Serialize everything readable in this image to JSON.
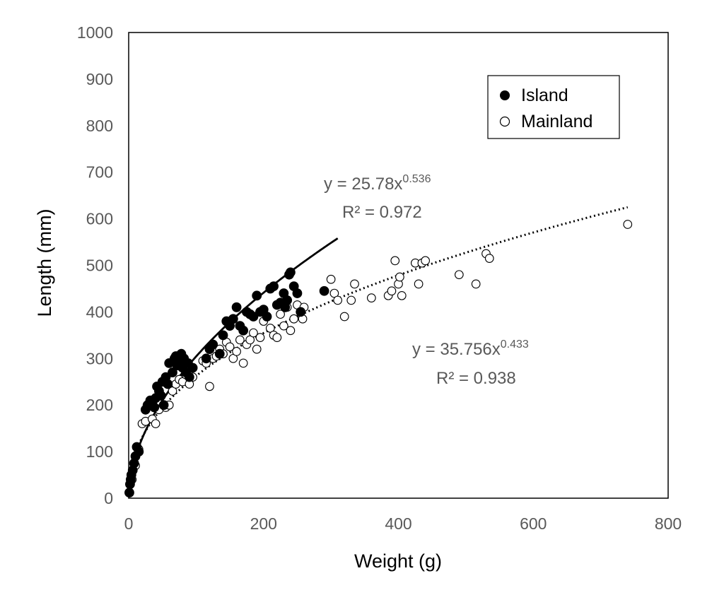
{
  "chart_data": {
    "type": "scatter",
    "title": "",
    "xlabel": "Weight (g)",
    "ylabel": "Length (mm)",
    "xlim": [
      0,
      800
    ],
    "ylim": [
      0,
      1000
    ],
    "xticks": [
      "0",
      "200",
      "400",
      "600",
      "800"
    ],
    "yticks": [
      "0",
      "100",
      "200",
      "300",
      "400",
      "500",
      "600",
      "700",
      "800",
      "900",
      "1000"
    ],
    "grid": false,
    "legend_position": "top-right",
    "series": [
      {
        "name": "Island",
        "marker": "filled-circle",
        "color": "#000000",
        "points": [
          [
            1,
            12
          ],
          [
            2,
            30
          ],
          [
            3,
            40
          ],
          [
            4,
            50
          ],
          [
            6,
            60
          ],
          [
            8,
            75
          ],
          [
            10,
            90
          ],
          [
            12,
            110
          ],
          [
            15,
            100
          ],
          [
            25,
            190
          ],
          [
            28,
            200
          ],
          [
            32,
            210
          ],
          [
            35,
            205
          ],
          [
            38,
            195
          ],
          [
            40,
            215
          ],
          [
            42,
            240
          ],
          [
            45,
            230
          ],
          [
            48,
            220
          ],
          [
            50,
            250
          ],
          [
            52,
            200
          ],
          [
            55,
            260
          ],
          [
            58,
            245
          ],
          [
            60,
            290
          ],
          [
            65,
            270
          ],
          [
            68,
            300
          ],
          [
            70,
            305
          ],
          [
            72,
            285
          ],
          [
            75,
            295
          ],
          [
            78,
            310
          ],
          [
            80,
            280
          ],
          [
            82,
            300
          ],
          [
            85,
            270
          ],
          [
            88,
            290
          ],
          [
            90,
            260
          ],
          [
            95,
            280
          ],
          [
            115,
            300
          ],
          [
            120,
            320
          ],
          [
            125,
            330
          ],
          [
            135,
            310
          ],
          [
            140,
            350
          ],
          [
            145,
            380
          ],
          [
            150,
            370
          ],
          [
            155,
            385
          ],
          [
            160,
            410
          ],
          [
            165,
            370
          ],
          [
            170,
            360
          ],
          [
            175,
            400
          ],
          [
            180,
            395
          ],
          [
            185,
            390
          ],
          [
            190,
            435
          ],
          [
            195,
            400
          ],
          [
            200,
            405
          ],
          [
            205,
            390
          ],
          [
            210,
            450
          ],
          [
            215,
            455
          ],
          [
            220,
            415
          ],
          [
            225,
            420
          ],
          [
            230,
            440
          ],
          [
            232,
            410
          ],
          [
            235,
            425
          ],
          [
            238,
            480
          ],
          [
            240,
            485
          ],
          [
            245,
            455
          ],
          [
            250,
            440
          ],
          [
            255,
            400
          ],
          [
            290,
            445
          ]
        ]
      },
      {
        "name": "Mainland",
        "marker": "open-circle",
        "color": "#000000",
        "points": [
          [
            5,
            40
          ],
          [
            10,
            70
          ],
          [
            15,
            105
          ],
          [
            20,
            160
          ],
          [
            25,
            165
          ],
          [
            30,
            200
          ],
          [
            35,
            170
          ],
          [
            40,
            160
          ],
          [
            45,
            190
          ],
          [
            55,
            195
          ],
          [
            60,
            200
          ],
          [
            65,
            230
          ],
          [
            70,
            245
          ],
          [
            75,
            255
          ],
          [
            80,
            250
          ],
          [
            85,
            265
          ],
          [
            90,
            245
          ],
          [
            95,
            260
          ],
          [
            110,
            295
          ],
          [
            115,
            290
          ],
          [
            120,
            240
          ],
          [
            125,
            300
          ],
          [
            130,
            305
          ],
          [
            135,
            320
          ],
          [
            140,
            310
          ],
          [
            145,
            335
          ],
          [
            150,
            325
          ],
          [
            155,
            300
          ],
          [
            160,
            315
          ],
          [
            165,
            340
          ],
          [
            170,
            290
          ],
          [
            175,
            330
          ],
          [
            180,
            340
          ],
          [
            185,
            355
          ],
          [
            190,
            320
          ],
          [
            195,
            345
          ],
          [
            200,
            380
          ],
          [
            205,
            390
          ],
          [
            210,
            365
          ],
          [
            215,
            350
          ],
          [
            220,
            345
          ],
          [
            225,
            395
          ],
          [
            230,
            370
          ],
          [
            235,
            410
          ],
          [
            240,
            360
          ],
          [
            245,
            385
          ],
          [
            250,
            415
          ],
          [
            255,
            400
          ],
          [
            258,
            385
          ],
          [
            260,
            410
          ],
          [
            300,
            470
          ],
          [
            305,
            440
          ],
          [
            310,
            425
          ],
          [
            320,
            390
          ],
          [
            330,
            425
          ],
          [
            335,
            460
          ],
          [
            360,
            430
          ],
          [
            385,
            435
          ],
          [
            390,
            445
          ],
          [
            395,
            510
          ],
          [
            400,
            460
          ],
          [
            402,
            475
          ],
          [
            405,
            435
          ],
          [
            425,
            505
          ],
          [
            430,
            460
          ],
          [
            435,
            505
          ],
          [
            440,
            510
          ],
          [
            490,
            480
          ],
          [
            515,
            460
          ],
          [
            530,
            525
          ],
          [
            535,
            515
          ],
          [
            740,
            588
          ]
        ]
      }
    ],
    "trendlines": [
      {
        "series": "Island",
        "type": "power",
        "a": 25.78,
        "b": 0.536,
        "x_range": [
          1,
          310
        ],
        "style": "solid",
        "equation_label": "y = 25.78x",
        "exponent_label": "0.536",
        "r2_label": "R² = 0.972"
      },
      {
        "series": "Mainland",
        "type": "power",
        "a": 35.756,
        "b": 0.433,
        "x_range": [
          1,
          740
        ],
        "style": "dotted",
        "equation_label": "y = 35.756x",
        "exponent_label": "0.433",
        "r2_label": "R² = 0.938"
      }
    ]
  }
}
